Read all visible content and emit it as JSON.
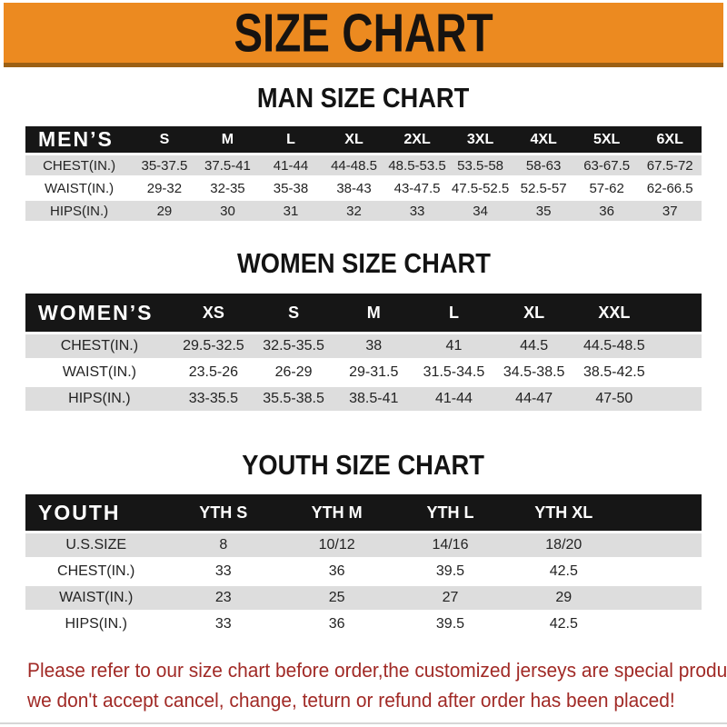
{
  "banner": {
    "title": "SIZE CHART"
  },
  "sections": [
    {
      "heading": "MAN SIZE CHART",
      "table": {
        "label": "MEN’S",
        "columns": [
          "S",
          "M",
          "L",
          "XL",
          "2XL",
          "3XL",
          "4XL",
          "5XL",
          "6XL"
        ],
        "rows": [
          {
            "label": "CHEST(IN.)",
            "values": [
              "35-37.5",
              "37.5-41",
              "41-44",
              "44-48.5",
              "48.5-53.5",
              "53.5-58",
              "58-63",
              "63-67.5",
              "67.5-72"
            ]
          },
          {
            "label": "WAIST(IN.)",
            "values": [
              "29-32",
              "32-35",
              "35-38",
              "38-43",
              "43-47.5",
              "47.5-52.5",
              "52.5-57",
              "57-62",
              "62-66.5"
            ]
          },
          {
            "label": "HIPS(IN.)",
            "values": [
              "29",
              "30",
              "31",
              "32",
              "33",
              "34",
              "35",
              "36",
              "37"
            ]
          }
        ]
      }
    },
    {
      "heading": "WOMEN SIZE CHART",
      "table": {
        "label": "WOMEN’S",
        "columns": [
          "XS",
          "S",
          "M",
          "L",
          "XL",
          "XXL"
        ],
        "rows": [
          {
            "label": "CHEST(IN.)",
            "values": [
              "29.5-32.5",
              "32.5-35.5",
              "38",
              "41",
              "44.5",
              "44.5-48.5"
            ]
          },
          {
            "label": "WAIST(IN.)",
            "values": [
              "23.5-26",
              "26-29",
              "29-31.5",
              "31.5-34.5",
              "34.5-38.5",
              "38.5-42.5"
            ]
          },
          {
            "label": "HIPS(IN.)",
            "values": [
              "33-35.5",
              "35.5-38.5",
              "38.5-41",
              "41-44",
              "44-47",
              "47-50"
            ]
          }
        ]
      }
    },
    {
      "heading": "YOUTH SIZE CHART",
      "table": {
        "label": "YOUTH",
        "columns": [
          "YTH S",
          "YTH M",
          "YTH L",
          "YTH XL"
        ],
        "rows": [
          {
            "label": "U.S.SIZE",
            "values": [
              "8",
              "10/12",
              "14/16",
              "18/20"
            ]
          },
          {
            "label": "CHEST(IN.)",
            "values": [
              "33",
              "36",
              "39.5",
              "42.5"
            ]
          },
          {
            "label": "WAIST(IN.)",
            "values": [
              "23",
              "25",
              "27",
              "29"
            ]
          },
          {
            "label": "HIPS(IN.)",
            "values": [
              "33",
              "36",
              "39.5",
              "42.5"
            ]
          }
        ]
      }
    }
  ],
  "footer": {
    "line1": "Please refer to our size chart before order,the customized jerseys are special products,",
    "line2": "we don't accept cancel, change, teturn or refund after order has been placed!"
  },
  "colors": {
    "banner_bg": "#EC8A20",
    "banner_edge": "#9c6014",
    "header_bar_bg": "#161616",
    "row_alt_bg": "#DDDDDD",
    "footer_text": "#A12A26"
  }
}
